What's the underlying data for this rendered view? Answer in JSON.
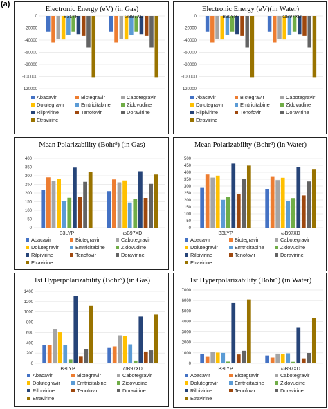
{
  "figure_label": "(a)",
  "colors": [
    "#4472C4",
    "#ED7D31",
    "#A5A5A5",
    "#FFC000",
    "#5B9BD5",
    "#70AD47",
    "#264478",
    "#9E480E",
    "#636363",
    "#997300"
  ],
  "chart_data": [
    {
      "type": "bar",
      "title": "Electronic Energy (eV) (in Gas)",
      "categories": [
        "B3LYP",
        "ωB97XD"
      ],
      "ylim": [
        -120000,
        0
      ],
      "yticks": [
        0,
        -20000,
        -40000,
        -60000,
        -80000,
        -100000,
        -120000
      ],
      "ytick_labels": [
        "0",
        "-20000",
        "-40000",
        "-60000",
        "-80000",
        "-100000",
        "-120000"
      ],
      "category_labels_position": "top",
      "grid": true,
      "legend": "bottom",
      "series": [
        {
          "name": "Abacavir",
          "values": [
            -26000,
            -26000
          ]
        },
        {
          "name": "Bictegravir",
          "values": [
            -44000,
            -44000
          ]
        },
        {
          "name": "Cabotegravir",
          "values": [
            -38000,
            -38000
          ]
        },
        {
          "name": "Dolutegravir",
          "values": [
            -39000,
            -39000
          ]
        },
        {
          "name": "Emtricitabine",
          "values": [
            -31000,
            -31000
          ]
        },
        {
          "name": "Zidovudine",
          "values": [
            -26000,
            -26000
          ]
        },
        {
          "name": "Rilpivirine",
          "values": [
            -30000,
            -30000
          ]
        },
        {
          "name": "Tenofovir",
          "values": [
            -33000,
            -33000
          ]
        },
        {
          "name": "Doravirine",
          "values": [
            -52000,
            -52000
          ]
        },
        {
          "name": "Etravirine",
          "values": [
            -101000,
            -101000
          ]
        }
      ]
    },
    {
      "type": "bar",
      "title": "Electronic Energy (eV)(in Water)",
      "categories": [
        "B3LYP",
        "ωB97XD"
      ],
      "ylim": [
        -120000,
        0
      ],
      "yticks": [
        0,
        -20000,
        -40000,
        -60000,
        -80000,
        -100000,
        -120000
      ],
      "ytick_labels": [
        "0",
        "-20000",
        "-40000",
        "-60000",
        "-80000",
        "-100000",
        "-120000"
      ],
      "category_labels_position": "top",
      "grid": true,
      "legend": "bottom",
      "series": [
        {
          "name": "Abacavir",
          "values": [
            -26000,
            -26000
          ]
        },
        {
          "name": "Bictegravir",
          "values": [
            -44000,
            -44000
          ]
        },
        {
          "name": "Cabotegravir",
          "values": [
            -38000,
            -38000
          ]
        },
        {
          "name": "Dolutegravir",
          "values": [
            -39000,
            -39000
          ]
        },
        {
          "name": "Emtricitabine",
          "values": [
            -31000,
            -31000
          ]
        },
        {
          "name": "Zidovudine",
          "values": [
            -26000,
            -26000
          ]
        },
        {
          "name": "Rilpivirine",
          "values": [
            -30000,
            -30000
          ]
        },
        {
          "name": "Tenofovir",
          "values": [
            -33000,
            -33000
          ]
        },
        {
          "name": "Doravirine",
          "values": [
            -52000,
            -52000
          ]
        },
        {
          "name": "Etravirine",
          "values": [
            -101000,
            -101000
          ]
        }
      ]
    },
    {
      "type": "bar",
      "title": "Mean Polarizability (Bohr³) (in Gas)",
      "categories": [
        "B3LYP",
        "ωB97XD"
      ],
      "ylim": [
        0,
        400
      ],
      "yticks": [
        0,
        50,
        100,
        150,
        200,
        250,
        300,
        350,
        400
      ],
      "ytick_labels": [
        "0",
        "50",
        "100",
        "150",
        "200",
        "250",
        "300",
        "350",
        "400"
      ],
      "category_labels_position": "bottom",
      "grid": true,
      "legend": "bottom",
      "series": [
        {
          "name": "Abacavir",
          "values": [
            218,
            211
          ]
        },
        {
          "name": "Bictegravir",
          "values": [
            291,
            279
          ]
        },
        {
          "name": "Cabotegravir",
          "values": [
            272,
            262
          ]
        },
        {
          "name": "Dolutegravir",
          "values": [
            282,
            273
          ]
        },
        {
          "name": "Emtricitabine",
          "values": [
            152,
            145
          ]
        },
        {
          "name": "Zidovudine",
          "values": [
            173,
            166
          ]
        },
        {
          "name": "Rilpivirine",
          "values": [
            347,
            326
          ]
        },
        {
          "name": "Tenofovir",
          "values": [
            176,
            172
          ]
        },
        {
          "name": "Doravirine",
          "values": [
            265,
            253
          ]
        },
        {
          "name": "Etravirine",
          "values": [
            322,
            307
          ]
        }
      ]
    },
    {
      "type": "bar",
      "title": "Mean Polarizability (Bohr³) (in Water)",
      "categories": [
        "B3LYP",
        "ωB97XD"
      ],
      "ylim": [
        0,
        500
      ],
      "yticks": [
        0,
        50,
        100,
        150,
        200,
        250,
        300,
        350,
        400,
        450,
        500
      ],
      "ytick_labels": [
        "0",
        "50",
        "100",
        "150",
        "200",
        "250",
        "300",
        "350",
        "400",
        "450",
        "500"
      ],
      "category_labels_position": "bottom",
      "grid": true,
      "legend": "bottom",
      "series": [
        {
          "name": "Abacavir",
          "values": [
            292,
            280
          ]
        },
        {
          "name": "Bictegravir",
          "values": [
            384,
            367
          ]
        },
        {
          "name": "Cabotegravir",
          "values": [
            362,
            344
          ]
        },
        {
          "name": "Dolutegravir",
          "values": [
            376,
            361
          ]
        },
        {
          "name": "Emtricitabine",
          "values": [
            201,
            191
          ]
        },
        {
          "name": "Zidovudine",
          "values": [
            225,
            214
          ]
        },
        {
          "name": "Rilpivirine",
          "values": [
            463,
            436
          ]
        },
        {
          "name": "Tenofovir",
          "values": [
            240,
            233
          ]
        },
        {
          "name": "Doravirine",
          "values": [
            354,
            334
          ]
        },
        {
          "name": "Etravirine",
          "values": [
            448,
            424
          ]
        }
      ]
    },
    {
      "type": "bar",
      "title": "1st Hyperpolarizability (Bohr⁵) (in Gas)",
      "categories": [
        "B3LYP",
        "ωB97XD"
      ],
      "ylim": [
        0,
        1400
      ],
      "yticks": [
        0,
        200,
        400,
        600,
        800,
        1000,
        1200,
        1400
      ],
      "ytick_labels": [
        "0",
        "200",
        "400",
        "600",
        "800",
        "1000",
        "1200",
        "1400"
      ],
      "category_labels_position": "bottom",
      "grid": true,
      "legend": "bottom",
      "series": [
        {
          "name": "Abacavir",
          "values": [
            360,
            300
          ]
        },
        {
          "name": "Bictegravir",
          "values": [
            355,
            330
          ]
        },
        {
          "name": "Cabotegravir",
          "values": [
            670,
            545
          ]
        },
        {
          "name": "Dolutegravir",
          "values": [
            605,
            525
          ]
        },
        {
          "name": "Emtricitabine",
          "values": [
            360,
            370
          ]
        },
        {
          "name": "Zidovudine",
          "values": [
            75,
            55
          ]
        },
        {
          "name": "Rilpivirine",
          "values": [
            1310,
            910
          ]
        },
        {
          "name": "Tenofovir",
          "values": [
            130,
            230
          ]
        },
        {
          "name": "Doravirine",
          "values": [
            270,
            255
          ]
        },
        {
          "name": "Etravirine",
          "values": [
            1120,
            950
          ]
        }
      ]
    },
    {
      "type": "bar",
      "title": "1st Hyperpolarizability (Bohr⁵) (in Water)",
      "categories": [
        "B3LYP",
        "ωB97XD"
      ],
      "ylim": [
        0,
        7000
      ],
      "yticks": [
        0,
        1000,
        2000,
        3000,
        4000,
        5000,
        6000,
        7000
      ],
      "ytick_labels": [
        "0",
        "1000",
        "2000",
        "3000",
        "4000",
        "5000",
        "6000",
        "7000"
      ],
      "category_labels_position": "bottom",
      "grid": true,
      "legend": "bottom",
      "series": [
        {
          "name": "Abacavir",
          "values": [
            900,
            750
          ]
        },
        {
          "name": "Bictegravir",
          "values": [
            620,
            560
          ]
        },
        {
          "name": "Cabotegravir",
          "values": [
            1070,
            930
          ]
        },
        {
          "name": "Dolutegravir",
          "values": [
            1030,
            920
          ]
        },
        {
          "name": "Emtricitabine",
          "values": [
            1000,
            960
          ]
        },
        {
          "name": "Zidovudine",
          "values": [
            170,
            150
          ]
        },
        {
          "name": "Rilpivirine",
          "values": [
            5750,
            3400
          ]
        },
        {
          "name": "Tenofovir",
          "values": [
            850,
            420
          ]
        },
        {
          "name": "Doravirine",
          "values": [
            1200,
            990
          ]
        },
        {
          "name": "Etravirine",
          "values": [
            6100,
            4300
          ]
        }
      ]
    }
  ]
}
